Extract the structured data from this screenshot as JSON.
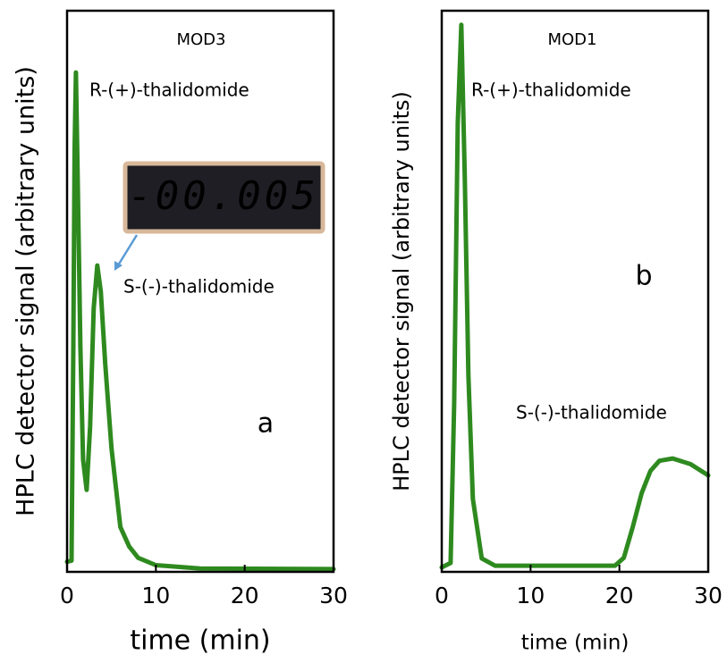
{
  "chart_data": [
    {
      "type": "line",
      "title": "MOD3",
      "x_label": "time (min)",
      "y_label": "HPLC detector signal (arbitrary units)",
      "color": "#2e8a1f",
      "x": [
        0,
        0.5,
        0.7,
        0.85,
        1.0,
        1.2,
        1.5,
        1.8,
        2.2,
        2.6,
        3.0,
        3.4,
        3.8,
        4.3,
        5.0,
        6.0,
        7.0,
        8.0,
        10.0,
        15.0,
        30.0
      ],
      "values": [
        1.8,
        2.0,
        40,
        75,
        89,
        70,
        40,
        20,
        14.6,
        26,
        47,
        54.6,
        50,
        37,
        22,
        8,
        4.5,
        2.5,
        1.2,
        0.6,
        0.5
      ],
      "xlim": [
        0,
        30
      ],
      "xticks": [
        0,
        10,
        20,
        30
      ],
      "ylim": [
        0,
        100
      ],
      "annotations": [
        "R-(+)-thalidomide",
        "S-(-)-thalidomide",
        "a"
      ],
      "display_reading": "-00.005"
    },
    {
      "type": "line",
      "title": "MOD1",
      "x_label": "time (min)",
      "y_label": "HPLC detector signal (arbitrary units)",
      "color": "#2e8a1f",
      "x": [
        0,
        1.0,
        1.4,
        1.8,
        2.2,
        2.6,
        3.0,
        3.5,
        4.5,
        6.0,
        19.5,
        20.5,
        21.5,
        22.5,
        23.5,
        24.5,
        26.0,
        28.0,
        30.0
      ],
      "values": [
        0.8,
        1.6,
        30,
        80,
        97.5,
        70,
        35,
        13,
        2.4,
        1.1,
        1.1,
        2.5,
        8,
        14,
        18,
        19.8,
        20.2,
        19.2,
        17.2
      ],
      "xlim": [
        0,
        30
      ],
      "xticks": [
        0,
        10,
        20,
        30
      ],
      "ylim": [
        0,
        100
      ],
      "annotations": [
        "R-(+)-thalidomide",
        "b",
        "S-(-)-thalidomide"
      ]
    }
  ]
}
